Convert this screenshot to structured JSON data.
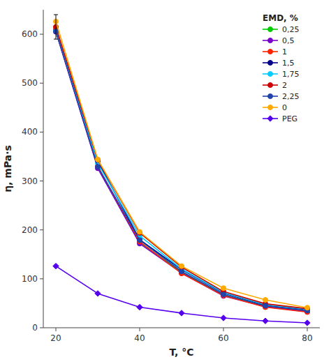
{
  "chart_data": {
    "type": "line",
    "xlabel": "T, °C",
    "ylabel": "η, mPa·s",
    "x": [
      20,
      30,
      40,
      50,
      60,
      70,
      80
    ],
    "series": [
      {
        "name": "0,25",
        "color": "#00cc00",
        "marker": "circle",
        "values": [
          608,
          328,
          174,
          114,
          67,
          44,
          34
        ]
      },
      {
        "name": "0,5",
        "color": "#7700cc",
        "marker": "circle",
        "values": [
          605,
          326,
          172,
          112,
          65,
          43,
          33
        ]
      },
      {
        "name": "1",
        "color": "#ff2200",
        "marker": "circle",
        "values": [
          610,
          330,
          176,
          111,
          66,
          42,
          32
        ]
      },
      {
        "name": "1,5",
        "color": "#00008b",
        "marker": "circle",
        "values": [
          606,
          341,
          180,
          119,
          71,
          46,
          37
        ]
      },
      {
        "name": "1,75",
        "color": "#00ccff",
        "marker": "circle",
        "values": [
          607,
          336,
          188,
          120,
          72,
          47,
          38
        ]
      },
      {
        "name": "2",
        "color": "#cc0000",
        "marker": "circle",
        "values": [
          615,
          343,
          194,
          124,
          74,
          49,
          39
        ]
      },
      {
        "name": "2,25",
        "color": "#2244aa",
        "marker": "circle",
        "values": [
          606,
          329,
          179,
          115,
          68,
          45,
          35
        ]
      },
      {
        "name": "0",
        "color": "#ffaa00",
        "marker": "circle",
        "values": [
          626,
          344,
          196,
          126,
          81,
          57,
          41
        ]
      },
      {
        "name": "PEG",
        "color": "#5500ee",
        "marker": "diamond",
        "values": [
          126,
          70,
          42,
          30,
          20,
          14,
          10
        ]
      }
    ],
    "error_bar": {
      "x": 20,
      "y": 615,
      "yerr": 25
    },
    "xlim": [
      17,
      83
    ],
    "ylim": [
      0,
      650
    ],
    "xticks": [
      20,
      40,
      60,
      80
    ],
    "yticks": [
      0,
      100,
      200,
      300,
      400,
      500,
      600
    ],
    "legend": "upper right",
    "legend_title": "EMD, %",
    "grid": false
  }
}
